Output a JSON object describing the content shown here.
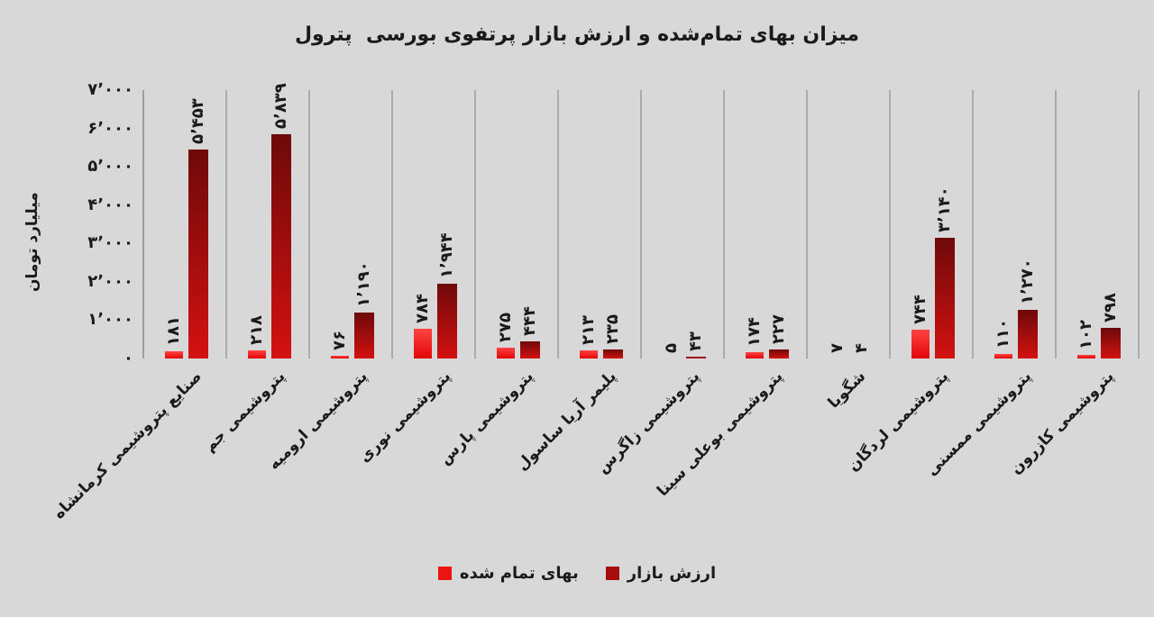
{
  "page": {
    "background": "#d8d8d8"
  },
  "chart_data": {
    "type": "bar",
    "title": "میزان بهای تمام‌شده و ارزش بازار پرتفوی بورسی  پترول",
    "ylabel": "میلیارد تومان",
    "xlabel": "",
    "ylim": [
      0,
      7000
    ],
    "grid": "vertical-category-separators",
    "legend_position": "bottom-center",
    "text_color": "#1a1a1a",
    "gridline_color": "#ababab",
    "axis_line_color": "#9e9e9e",
    "yticks": [
      {
        "value": 0,
        "label": "۰"
      },
      {
        "value": 1000,
        "label": "۱٬۰۰۰"
      },
      {
        "value": 2000,
        "label": "۲٬۰۰۰"
      },
      {
        "value": 3000,
        "label": "۳٬۰۰۰"
      },
      {
        "value": 4000,
        "label": "۴٬۰۰۰"
      },
      {
        "value": 5000,
        "label": "۵٬۰۰۰"
      },
      {
        "value": 6000,
        "label": "۶٬۰۰۰"
      },
      {
        "value": 7000,
        "label": "۷٬۰۰۰"
      }
    ],
    "categories": [
      "صنایع پتروشیمی کرمانشاه",
      "پتروشیمی جم",
      "پتروشیمی ارومیه",
      "پتروشیمی نوری",
      "پتروشیمی پارس",
      "پلیمر آریا ساسول",
      "پتروشیمی زاگرس",
      "پتروشیمی بوعلی سینا",
      "شگویا",
      "پتروشیمی لردگان",
      "پتروشیمی ممسنی",
      "پتروشیمی کازرون"
    ],
    "series": [
      {
        "name": "بهای تمام شده",
        "legend_color": "#ee1313",
        "gradient_top": "#ff4343",
        "gradient_bottom": "#e20606",
        "values": [
          181,
          218,
          76,
          784,
          275,
          213,
          5,
          174,
          7,
          744,
          110,
          102
        ],
        "value_labels": [
          "۱۸۱",
          "۲۱۸",
          "۷۶",
          "۷۸۴",
          "۲۷۵",
          "۲۱۳",
          "۵",
          "۱۷۴",
          "۷",
          "۷۴۴",
          "۱۱۰",
          "۱۰۲"
        ]
      },
      {
        "name": "ارزش بازار",
        "legend_color": "#a60c0c",
        "gradient_top": "#6e0909",
        "gradient_bottom": "#d41111",
        "values": [
          5453,
          5839,
          1190,
          1944,
          444,
          235,
          43,
          227,
          4,
          3140,
          1270,
          798
        ],
        "value_labels": [
          "۵٬۴۵۳",
          "۵٬۸۳۹",
          "۱٬۱۹۰",
          "۱٬۹۴۴",
          "۴۴۴",
          "۲۳۵",
          "۴۳",
          "۲۲۷",
          "۴",
          "۳٬۱۴۰",
          "۱٬۲۷۰",
          "۷۹۸"
        ]
      }
    ]
  }
}
